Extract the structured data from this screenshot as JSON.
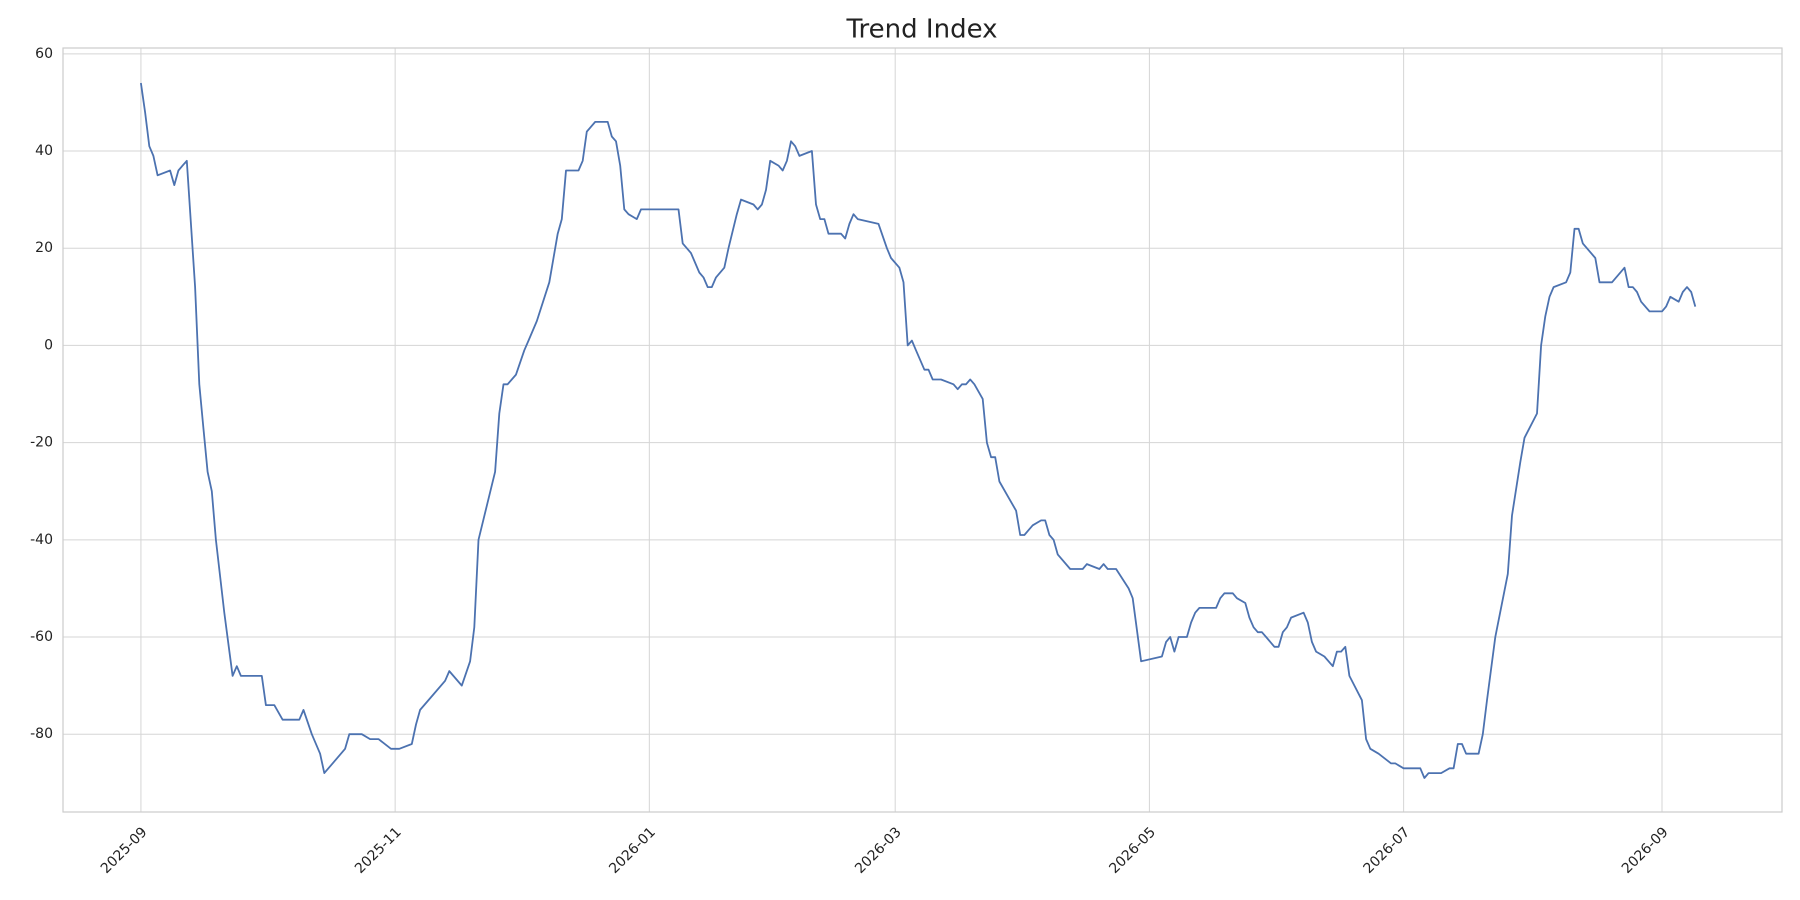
{
  "chart_data": {
    "type": "line",
    "title": "Trend Index",
    "x": [
      0,
      1,
      2,
      3,
      4,
      7,
      8,
      9,
      10,
      11,
      13,
      14,
      15,
      16,
      17,
      18,
      20,
      22,
      23,
      24,
      25,
      29,
      30,
      32,
      34,
      38,
      39,
      41,
      43,
      44,
      46,
      49,
      50,
      51,
      53,
      55,
      57,
      60,
      62,
      65,
      66,
      67,
      70,
      73,
      74,
      77,
      79,
      80,
      81,
      83,
      85,
      86,
      87,
      88,
      90,
      92,
      93,
      95,
      98,
      99,
      100,
      101,
      102,
      105,
      106,
      107,
      109,
      112,
      113,
      114,
      115,
      116,
      117,
      119,
      120,
      129,
      130,
      131,
      132,
      134,
      135,
      136,
      137,
      138,
      140,
      141,
      143,
      144,
      147,
      148,
      149,
      150,
      151,
      153,
      154,
      155,
      156,
      157,
      158,
      161,
      162,
      163,
      164,
      165,
      168,
      169,
      170,
      171,
      172,
      177,
      179,
      180,
      182,
      183,
      184,
      185,
      186,
      188,
      189,
      190,
      192,
      195,
      196,
      197,
      198,
      199,
      200,
      202,
      203,
      204,
      205,
      206,
      208,
      210,
      211,
      212,
      213,
      214,
      216,
      217,
      218,
      219,
      220,
      223,
      226,
      227,
      230,
      231,
      232,
      234,
      237,
      238,
      240,
      245,
      246,
      247,
      248,
      249,
      251,
      252,
      253,
      254,
      258,
      259,
      260,
      262,
      263,
      265,
      266,
      267,
      268,
      269,
      270,
      272,
      273,
      274,
      275,
      276,
      279,
      280,
      281,
      282,
      284,
      286,
      287,
      288,
      289,
      290,
      293,
      294,
      295,
      297,
      300,
      301,
      303,
      307,
      308,
      309,
      312,
      314,
      315,
      316,
      317,
      318,
      321,
      322,
      323,
      325,
      328,
      329,
      331,
      332,
      335,
      336,
      337,
      338,
      339,
      342,
      343,
      344,
      345,
      346,
      349,
      350,
      353,
      356,
      357,
      358,
      359,
      360,
      362,
      365,
      366,
      367,
      369,
      370,
      371,
      372,
      373
    ],
    "series": [
      {
        "name": "Trend Index",
        "color": "#4c72b0",
        "values": [
          54,
          48,
          41,
          39,
          35,
          36,
          33,
          36,
          37,
          38,
          12,
          -8,
          -17,
          -26,
          -30,
          -40,
          -55,
          -68,
          -66,
          -68,
          -68,
          -68,
          -74,
          -74,
          -77,
          -77,
          -75,
          -80,
          -84,
          -88,
          -86,
          -83,
          -80,
          -80,
          -80,
          -81,
          -81,
          -83,
          -83,
          -82,
          -78,
          -75,
          -72,
          -69,
          -67,
          -70,
          -65,
          -58,
          -40,
          -33,
          -26,
          -14,
          -8,
          -8,
          -6,
          -1,
          1,
          5,
          13,
          18,
          23,
          26,
          36,
          36,
          38,
          44,
          46,
          46,
          43,
          42,
          37,
          28,
          27,
          26,
          28,
          28,
          21,
          20,
          19,
          15,
          14,
          12,
          12,
          14,
          16,
          20,
          27,
          30,
          29,
          28,
          29,
          32,
          38,
          37,
          36,
          38,
          42,
          41,
          39,
          40,
          29,
          26,
          26,
          23,
          23,
          22,
          25,
          27,
          26,
          25,
          20,
          18,
          16,
          13,
          0,
          1,
          -1,
          -5,
          -5,
          -7,
          -7,
          -8,
          -9,
          -8,
          -8,
          -7,
          -8,
          -11,
          -20,
          -23,
          -23,
          -28,
          -31,
          -34,
          -39,
          -39,
          -38,
          -37,
          -36,
          -36,
          -39,
          -40,
          -43,
          -46,
          -46,
          -45,
          -46,
          -45,
          -46,
          -46,
          -50,
          -52,
          -65,
          -64,
          -61,
          -60,
          -63,
          -60,
          -60,
          -57,
          -55,
          -54,
          -54,
          -52,
          -51,
          -51,
          -52,
          -53,
          -56,
          -58,
          -59,
          -59,
          -60,
          -62,
          -62,
          -59,
          -58,
          -56,
          -55,
          -57,
          -61,
          -63,
          -64,
          -66,
          -63,
          -63,
          -62,
          -68,
          -73,
          -81,
          -83,
          -84,
          -86,
          -86,
          -87,
          -87,
          -89,
          -88,
          -88,
          -87,
          -87,
          -82,
          -82,
          -84,
          -84,
          -80,
          -73,
          -60,
          -47,
          -35,
          -24,
          -19,
          -14,
          0,
          6,
          10,
          12,
          13,
          15,
          24,
          24,
          21,
          18,
          13,
          13,
          16,
          12,
          12,
          11,
          9,
          7,
          7,
          8,
          10,
          9,
          11,
          12,
          11,
          8
        ]
      }
    ],
    "xlim": [
      -18.7,
      393.8
    ],
    "xticks": [
      {
        "value": 0,
        "label": "2025-09"
      },
      {
        "value": 61,
        "label": "2025-11"
      },
      {
        "value": 122,
        "label": "2026-01"
      },
      {
        "value": 181,
        "label": "2026-03"
      },
      {
        "value": 242,
        "label": "2026-05"
      },
      {
        "value": 303,
        "label": "2026-07"
      },
      {
        "value": 365,
        "label": "2026-09"
      }
    ],
    "ylim": [
      -96,
      61.2
    ],
    "yticks": [
      -80,
      -60,
      -40,
      -20,
      0,
      20,
      40,
      60
    ],
    "grid": true
  }
}
